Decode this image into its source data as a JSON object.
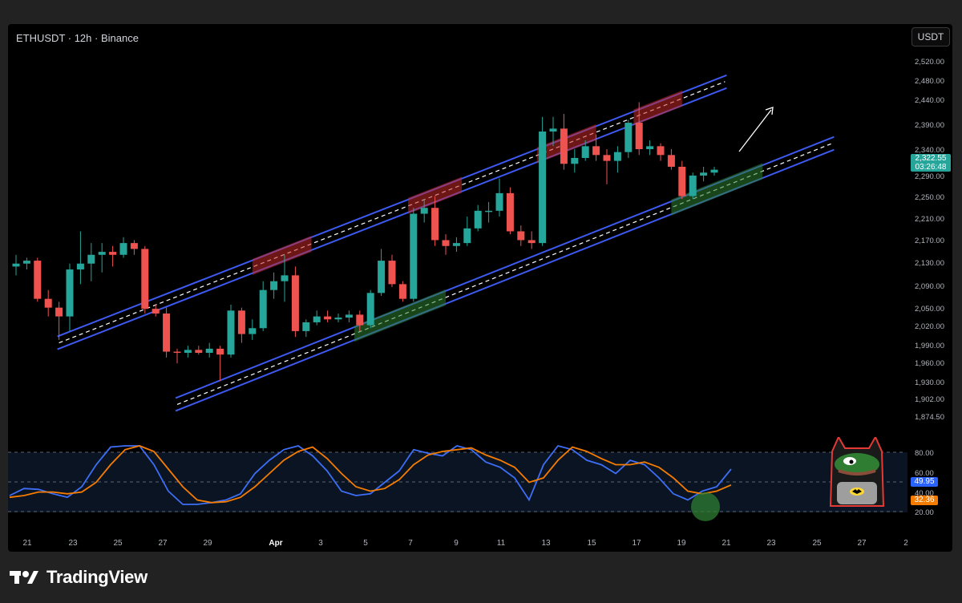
{
  "header": {
    "symbol": "ETHUSDT · 12h · Binance",
    "currency": "USDT"
  },
  "brand": {
    "name": "TradingView"
  },
  "colors": {
    "up": "#26a69a",
    "down": "#ef5350",
    "channel": "#3d5af1",
    "k_line": "#3d6ef5",
    "d_line": "#f57c00",
    "mascot_border": "#e53935"
  },
  "icons": [
    "tradingview-logo-icon",
    "arrow-icon",
    "pepe-batman-mascot-icon"
  ],
  "chart_data": {
    "type": "candlestick",
    "price_axis": {
      "ticks": [
        "2,520.00",
        "2,480.00",
        "2,440.00",
        "2,390.00",
        "2,340.00",
        "2,290.00",
        "2,250.00",
        "2,210.00",
        "2,170.00",
        "2,130.00",
        "2,090.00",
        "2,050.00",
        "2,020.00",
        "1,990.00",
        "1,960.00",
        "1,930.00",
        "1,902.00",
        "1,874.50"
      ]
    },
    "last_price": {
      "value": "2,322.55",
      "countdown": "03:26:48"
    },
    "time_axis": {
      "ticks": [
        "21",
        "23",
        "25",
        "27",
        "29",
        "Apr",
        "3",
        "5",
        "7",
        "9",
        "11",
        "13",
        "15",
        "17",
        "19",
        "21",
        "23",
        "25",
        "27",
        "2"
      ]
    },
    "candles": [
      {
        "o": 2140,
        "h": 2160,
        "l": 2125,
        "c": 2145
      },
      {
        "o": 2145,
        "h": 2155,
        "l": 2135,
        "c": 2150
      },
      {
        "o": 2150,
        "h": 2155,
        "l": 2080,
        "c": 2085
      },
      {
        "o": 2085,
        "h": 2100,
        "l": 2055,
        "c": 2070
      },
      {
        "o": 2070,
        "h": 2080,
        "l": 2015,
        "c": 2055
      },
      {
        "o": 2055,
        "h": 2145,
        "l": 2030,
        "c": 2135
      },
      {
        "o": 2135,
        "h": 2200,
        "l": 2110,
        "c": 2145
      },
      {
        "o": 2145,
        "h": 2180,
        "l": 2115,
        "c": 2160
      },
      {
        "o": 2160,
        "h": 2180,
        "l": 2130,
        "c": 2165
      },
      {
        "o": 2165,
        "h": 2175,
        "l": 2140,
        "c": 2160
      },
      {
        "o": 2160,
        "h": 2190,
        "l": 2155,
        "c": 2180
      },
      {
        "o": 2180,
        "h": 2185,
        "l": 2160,
        "c": 2170
      },
      {
        "o": 2170,
        "h": 2175,
        "l": 2060,
        "c": 2068
      },
      {
        "o": 2068,
        "h": 2075,
        "l": 2055,
        "c": 2060
      },
      {
        "o": 2060,
        "h": 2070,
        "l": 1985,
        "c": 1995
      },
      {
        "o": 1995,
        "h": 2000,
        "l": 1975,
        "c": 1993
      },
      {
        "o": 1993,
        "h": 2005,
        "l": 1985,
        "c": 1998
      },
      {
        "o": 1998,
        "h": 2005,
        "l": 1990,
        "c": 1993
      },
      {
        "o": 1993,
        "h": 2010,
        "l": 1985,
        "c": 2000
      },
      {
        "o": 2000,
        "h": 2005,
        "l": 1945,
        "c": 1990
      },
      {
        "o": 1990,
        "h": 2075,
        "l": 1985,
        "c": 2065
      },
      {
        "o": 2065,
        "h": 2070,
        "l": 2010,
        "c": 2025
      },
      {
        "o": 2025,
        "h": 2050,
        "l": 2015,
        "c": 2035
      },
      {
        "o": 2035,
        "h": 2115,
        "l": 2030,
        "c": 2100
      },
      {
        "o": 2100,
        "h": 2130,
        "l": 2085,
        "c": 2115
      },
      {
        "o": 2115,
        "h": 2160,
        "l": 2080,
        "c": 2125
      },
      {
        "o": 2125,
        "h": 2140,
        "l": 2020,
        "c": 2030
      },
      {
        "o": 2030,
        "h": 2050,
        "l": 2020,
        "c": 2045
      },
      {
        "o": 2045,
        "h": 2065,
        "l": 2040,
        "c": 2055
      },
      {
        "o": 2055,
        "h": 2065,
        "l": 2045,
        "c": 2050
      },
      {
        "o": 2050,
        "h": 2060,
        "l": 2045,
        "c": 2053
      },
      {
        "o": 2053,
        "h": 2065,
        "l": 2045,
        "c": 2058
      },
      {
        "o": 2058,
        "h": 2065,
        "l": 2030,
        "c": 2040
      },
      {
        "o": 2040,
        "h": 2100,
        "l": 2035,
        "c": 2095
      },
      {
        "o": 2095,
        "h": 2170,
        "l": 2090,
        "c": 2150
      },
      {
        "o": 2150,
        "h": 2160,
        "l": 2105,
        "c": 2110
      },
      {
        "o": 2110,
        "h": 2115,
        "l": 2080,
        "c": 2085
      },
      {
        "o": 2085,
        "h": 2240,
        "l": 2080,
        "c": 2230
      },
      {
        "o": 2230,
        "h": 2255,
        "l": 2215,
        "c": 2240
      },
      {
        "o": 2240,
        "h": 2260,
        "l": 2175,
        "c": 2185
      },
      {
        "o": 2185,
        "h": 2195,
        "l": 2160,
        "c": 2175
      },
      {
        "o": 2175,
        "h": 2190,
        "l": 2165,
        "c": 2180
      },
      {
        "o": 2180,
        "h": 2225,
        "l": 2175,
        "c": 2205
      },
      {
        "o": 2205,
        "h": 2245,
        "l": 2200,
        "c": 2235
      },
      {
        "o": 2235,
        "h": 2250,
        "l": 2215,
        "c": 2235
      },
      {
        "o": 2235,
        "h": 2290,
        "l": 2225,
        "c": 2265
      },
      {
        "o": 2265,
        "h": 2275,
        "l": 2195,
        "c": 2200
      },
      {
        "o": 2200,
        "h": 2210,
        "l": 2175,
        "c": 2185
      },
      {
        "o": 2185,
        "h": 2200,
        "l": 2170,
        "c": 2180
      },
      {
        "o": 2180,
        "h": 2395,
        "l": 2175,
        "c": 2370
      },
      {
        "o": 2370,
        "h": 2395,
        "l": 2345,
        "c": 2375
      },
      {
        "o": 2375,
        "h": 2400,
        "l": 2305,
        "c": 2315
      },
      {
        "o": 2315,
        "h": 2340,
        "l": 2300,
        "c": 2325
      },
      {
        "o": 2325,
        "h": 2355,
        "l": 2320,
        "c": 2345
      },
      {
        "o": 2345,
        "h": 2365,
        "l": 2320,
        "c": 2330
      },
      {
        "o": 2330,
        "h": 2340,
        "l": 2280,
        "c": 2320
      },
      {
        "o": 2320,
        "h": 2345,
        "l": 2300,
        "c": 2335
      },
      {
        "o": 2335,
        "h": 2390,
        "l": 2325,
        "c": 2385
      },
      {
        "o": 2385,
        "h": 2420,
        "l": 2330,
        "c": 2340
      },
      {
        "o": 2340,
        "h": 2355,
        "l": 2330,
        "c": 2345
      },
      {
        "o": 2345,
        "h": 2350,
        "l": 2320,
        "c": 2330
      },
      {
        "o": 2330,
        "h": 2340,
        "l": 2305,
        "c": 2310
      },
      {
        "o": 2310,
        "h": 2320,
        "l": 2255,
        "c": 2260
      },
      {
        "o": 2260,
        "h": 2300,
        "l": 2255,
        "c": 2295
      },
      {
        "o": 2295,
        "h": 2310,
        "l": 2285,
        "c": 2300
      },
      {
        "o": 2300,
        "h": 2310,
        "l": 2295,
        "c": 2305
      }
    ],
    "oscillator": {
      "levels": [
        "80.00",
        "60.00",
        "40.00",
        "20.00"
      ],
      "k_value": "49.95",
      "d_value": "32.36",
      "series": [
        {
          "name": "K",
          "values": [
            20,
            28,
            27,
            22,
            18,
            30,
            55,
            75,
            82,
            78,
            55,
            25,
            10,
            10,
            12,
            15,
            22,
            45,
            60,
            72,
            80,
            65,
            48,
            25,
            20,
            22,
            35,
            48,
            72,
            68,
            65,
            78,
            72,
            58,
            52,
            40,
            15,
            55,
            82,
            72,
            60,
            55,
            45,
            60,
            55,
            40,
            22,
            15,
            25,
            30,
            50
          ]
        },
        {
          "name": "D",
          "values": [
            18,
            20,
            24,
            24,
            22,
            24,
            35,
            55,
            72,
            80,
            70,
            50,
            30,
            15,
            12,
            13,
            18,
            30,
            45,
            60,
            70,
            75,
            62,
            45,
            30,
            25,
            28,
            38,
            55,
            66,
            70,
            72,
            74,
            66,
            60,
            52,
            35,
            40,
            60,
            75,
            70,
            62,
            55,
            55,
            58,
            52,
            40,
            25,
            22,
            25,
            32
          ]
        }
      ]
    },
    "overlays": {
      "upper_channel": {
        "from": {
          "i": 4,
          "p": 2010
        },
        "to": {
          "i": 66,
          "p": 2455
        }
      },
      "lower_channel": {
        "from": {
          "i": 15,
          "p": 1905
        },
        "to": {
          "i": 76,
          "p": 2350
        }
      }
    }
  }
}
